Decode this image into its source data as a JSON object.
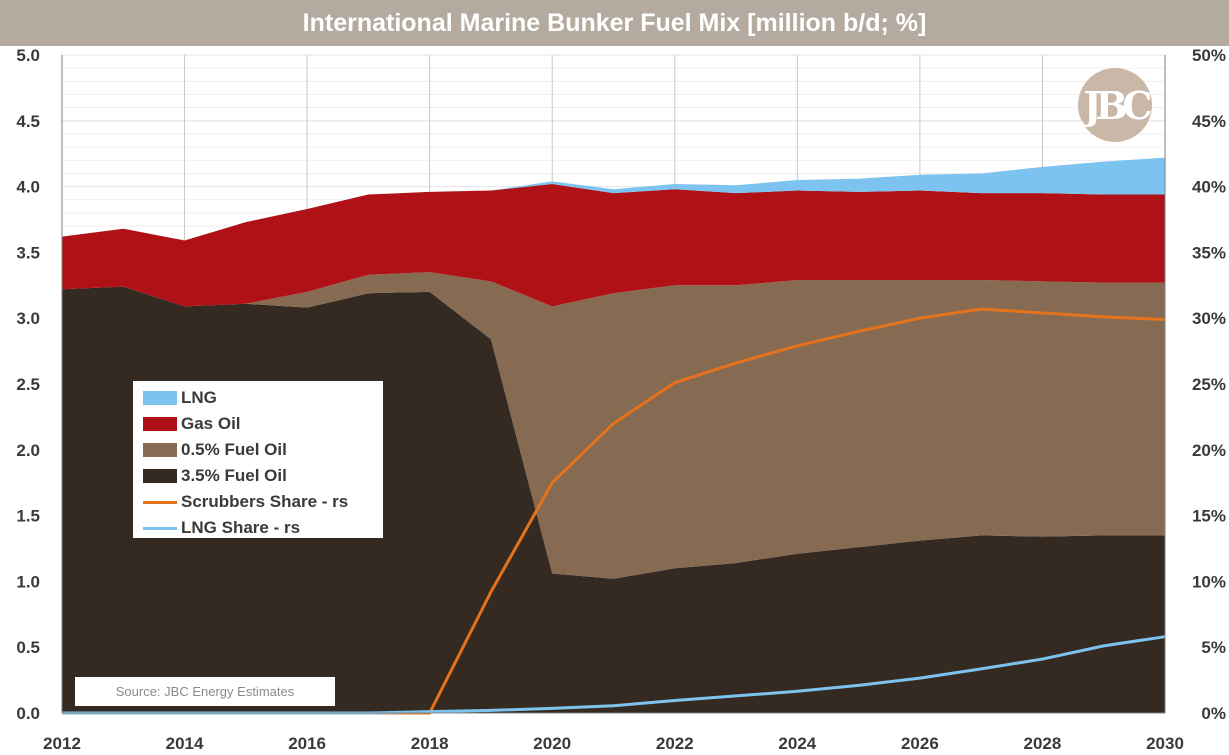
{
  "title": "International Marine Bunker Fuel Mix [million b/d; %]",
  "source": "Source:  JBC  Energy Estimates",
  "logo_text": "JBC",
  "chart_data": {
    "type": "area",
    "x": [
      2012,
      2013,
      2014,
      2015,
      2016,
      2017,
      2018,
      2019,
      2020,
      2021,
      2022,
      2023,
      2024,
      2025,
      2026,
      2027,
      2028,
      2029,
      2030
    ],
    "x_ticks": [
      "2012",
      "2014",
      "2016",
      "2018",
      "2020",
      "2022",
      "2024",
      "2026",
      "2028",
      "2030"
    ],
    "y_left_ticks": [
      "0.0",
      "0.5",
      "1.0",
      "1.5",
      "2.0",
      "2.5",
      "3.0",
      "3.5",
      "4.0",
      "4.5",
      "5.0"
    ],
    "y_right_ticks": [
      "0%",
      "5%",
      "10%",
      "15%",
      "20%",
      "25%",
      "30%",
      "35%",
      "40%",
      "45%",
      "50%"
    ],
    "ylim_left": [
      0,
      5
    ],
    "ylim_right": [
      0,
      50
    ],
    "grid": true,
    "legend_placement": "left-middle",
    "series": [
      {
        "name": "3.5% Fuel Oil",
        "color": "#352a22",
        "axis": "left",
        "stacked": true,
        "values": [
          3.22,
          3.24,
          3.09,
          3.11,
          3.08,
          3.19,
          3.2,
          2.84,
          1.06,
          1.02,
          1.1,
          1.14,
          1.21,
          1.26,
          1.31,
          1.35,
          1.34,
          1.35,
          1.35
        ]
      },
      {
        "name": "0.5% Fuel Oil",
        "color": "#866a52",
        "axis": "left",
        "stacked": true,
        "values": [
          0.0,
          0.0,
          0.0,
          0.0,
          0.12,
          0.14,
          0.15,
          0.44,
          2.03,
          2.17,
          2.15,
          2.11,
          2.08,
          2.03,
          1.98,
          1.94,
          1.94,
          1.92,
          1.92
        ]
      },
      {
        "name": "Gas Oil",
        "color": "#b01116",
        "axis": "left",
        "stacked": true,
        "values": [
          0.4,
          0.44,
          0.5,
          0.62,
          0.63,
          0.61,
          0.61,
          0.69,
          0.93,
          0.76,
          0.73,
          0.7,
          0.68,
          0.67,
          0.68,
          0.66,
          0.67,
          0.67,
          0.67
        ]
      },
      {
        "name": "LNG",
        "color": "#7cc4ef",
        "axis": "left",
        "stacked": true,
        "values": [
          0.0,
          0.0,
          0.0,
          0.0,
          0.0,
          0.0,
          0.0,
          0.0,
          0.02,
          0.03,
          0.04,
          0.06,
          0.08,
          0.1,
          0.12,
          0.15,
          0.2,
          0.25,
          0.28
        ]
      },
      {
        "name": "Scrubbers Share - rs",
        "color": "#e4731c",
        "axis": "right",
        "type": "line",
        "values": [
          0,
          0,
          0,
          0,
          0,
          0,
          0,
          9.2,
          17.5,
          22.0,
          25.1,
          26.6,
          27.9,
          29.0,
          30.0,
          30.7,
          30.4,
          30.1,
          29.9
        ]
      },
      {
        "name": "LNG Share - rs",
        "color": "#7cc4ef",
        "axis": "right",
        "type": "line",
        "values": [
          0,
          0,
          0,
          0,
          0,
          0,
          0.1,
          0.2,
          0.35,
          0.55,
          0.95,
          1.3,
          1.65,
          2.1,
          2.65,
          3.35,
          4.1,
          5.1,
          5.8
        ]
      }
    ]
  },
  "legend": [
    {
      "label": "LNG",
      "kind": "area",
      "color": "#7cc4ef"
    },
    {
      "label": "Gas Oil",
      "kind": "area",
      "color": "#b01116"
    },
    {
      "label": "0.5% Fuel Oil",
      "kind": "area",
      "color": "#866a52"
    },
    {
      "label": "3.5% Fuel Oil",
      "kind": "area",
      "color": "#352a22"
    },
    {
      "label": "Scrubbers Share - rs",
      "kind": "line",
      "color": "#e4731c"
    },
    {
      "label": "LNG Share - rs",
      "kind": "line",
      "color": "#7cc4ef"
    }
  ]
}
